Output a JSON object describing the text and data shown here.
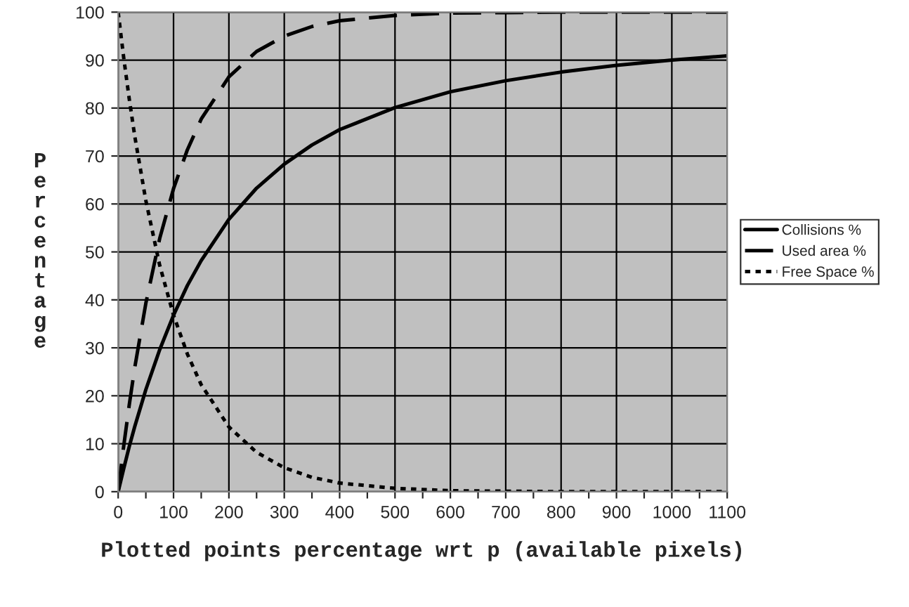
{
  "chart_data": {
    "type": "line",
    "xlabel": "Plotted points percentage wrt p (available pixels)",
    "ylabel": "Percentage",
    "x": [
      0,
      10,
      20,
      30,
      50,
      75,
      100,
      125,
      150,
      200,
      250,
      300,
      350,
      400,
      500,
      600,
      700,
      800,
      900,
      1000,
      1100
    ],
    "series": [
      {
        "name": "Collisions %",
        "color": "#000000",
        "line_style": "solid",
        "values": [
          0,
          4.8,
          9.4,
          13.6,
          21.3,
          29.6,
          36.8,
          43.0,
          48.2,
          56.8,
          63.3,
          68.3,
          72.3,
          75.5,
          80.1,
          83.4,
          85.7,
          87.5,
          88.9,
          90.0,
          90.9
        ]
      },
      {
        "name": "Used area %",
        "color": "#000000",
        "line_style": "dashed",
        "values": [
          0,
          9.5,
          18.1,
          25.9,
          39.3,
          52.8,
          63.2,
          71.3,
          77.7,
          86.5,
          91.8,
          95.0,
          97.0,
          98.2,
          99.3,
          99.8,
          99.9,
          100,
          100,
          100,
          100
        ]
      },
      {
        "name": "Free Space %",
        "color": "#000000",
        "line_style": "dotted",
        "values": [
          100,
          90.5,
          81.9,
          74.1,
          60.7,
          47.2,
          36.8,
          28.7,
          22.3,
          13.5,
          8.2,
          5.0,
          3.0,
          1.8,
          0.7,
          0.2,
          0.1,
          0,
          0,
          0,
          0
        ]
      }
    ],
    "xlim": [
      0,
      1100
    ],
    "xticks": [
      0,
      {
        "value": 50,
        "label": null
      },
      100,
      {
        "value": 150,
        "label": null
      },
      200,
      {
        "value": 250,
        "label": null
      },
      300,
      {
        "value": 350,
        "label": null
      },
      400,
      {
        "value": 450,
        "label": null
      },
      500,
      {
        "value": 550,
        "label": null
      },
      600,
      {
        "value": 650,
        "label": null
      },
      700,
      {
        "value": 750,
        "label": null
      },
      800,
      {
        "value": 850,
        "label": null
      },
      900,
      {
        "value": 950,
        "label": null
      },
      1000,
      {
        "value": 1050,
        "label": null
      },
      1100
    ],
    "ylim": [
      0,
      100
    ],
    "yticks": [
      0,
      10,
      20,
      30,
      40,
      50,
      60,
      70,
      80,
      90,
      100
    ],
    "grid": true,
    "legend": "right"
  }
}
